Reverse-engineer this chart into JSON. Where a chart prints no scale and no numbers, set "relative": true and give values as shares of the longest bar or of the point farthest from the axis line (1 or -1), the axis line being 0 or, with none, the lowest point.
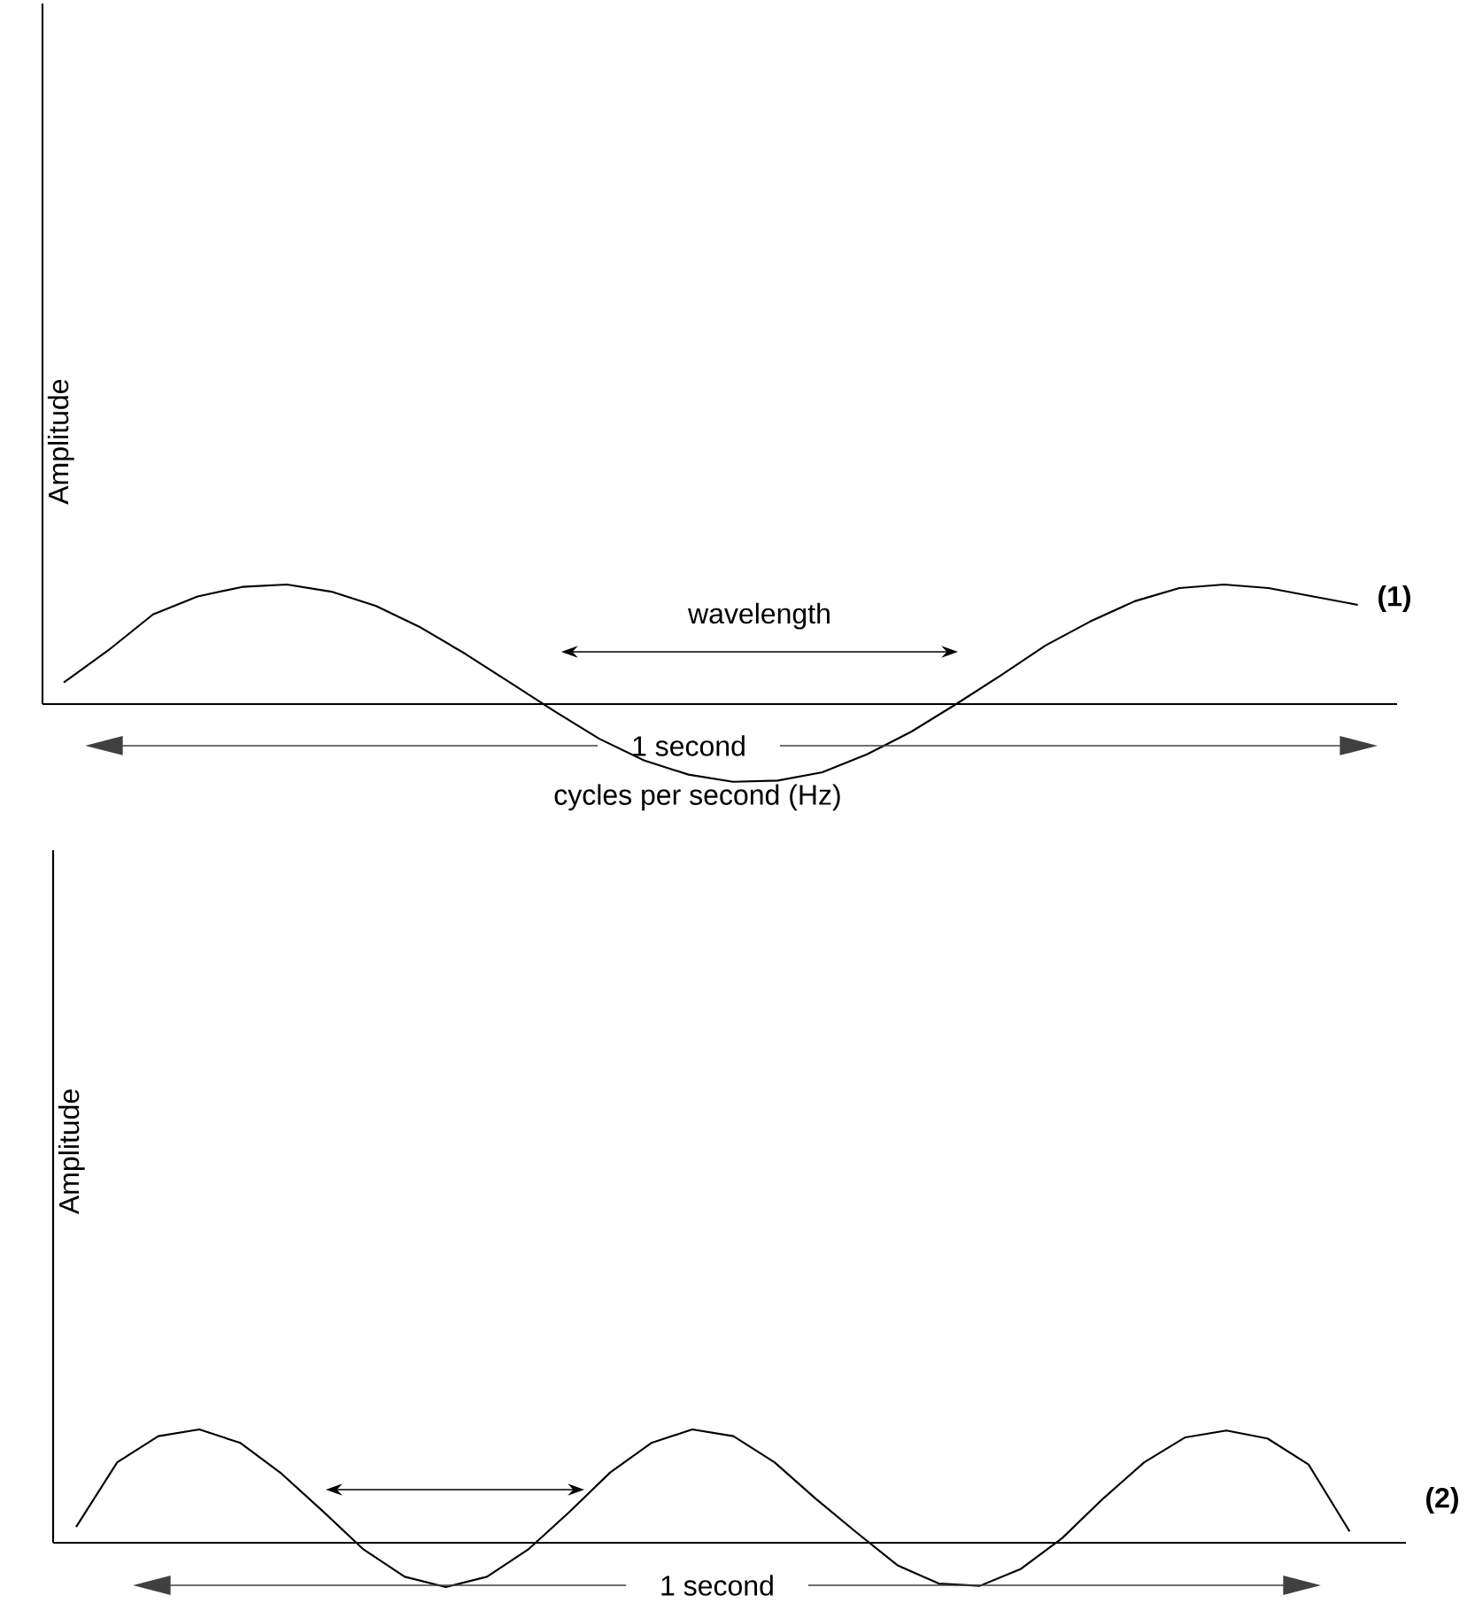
{
  "chart_data": [
    {
      "type": "line",
      "relative": true,
      "xlabel": "cycles per second (Hz)",
      "ylabel": "Amplitude",
      "categories": [
        null,
        null,
        null,
        null,
        null,
        null,
        null,
        null,
        null,
        null,
        null,
        null,
        null,
        null,
        null,
        null,
        null,
        null,
        null,
        null,
        null,
        null,
        null,
        null,
        null,
        null,
        null,
        null,
        null,
        null
      ],
      "series": [
        {
          "name": "(1)",
          "color": "#000000",
          "values": [
            0.18,
            0.45,
            0.75,
            0.9,
            0.98,
            1.0,
            0.94,
            0.82,
            0.64,
            0.42,
            0.18,
            -0.06,
            -0.29,
            -0.47,
            -0.59,
            -0.65,
            -0.64,
            -0.57,
            -0.42,
            -0.23,
            0.0,
            0.24,
            0.49,
            0.69,
            0.86,
            0.97,
            1.0,
            0.97,
            0.9,
            0.83
          ]
        }
      ],
      "annotations": [
        "wavelength",
        "1 second"
      ]
    },
    {
      "type": "line",
      "relative": true,
      "ylabel": "Amplitude",
      "categories": [
        null,
        null,
        null,
        null,
        null,
        null,
        null,
        null,
        null,
        null,
        null,
        null,
        null,
        null,
        null,
        null,
        null,
        null,
        null,
        null,
        null,
        null,
        null,
        null,
        null,
        null,
        null,
        null,
        null,
        null,
        null,
        null
      ],
      "series": [
        {
          "name": "(2)",
          "color": "#000000",
          "values": [
            0.14,
            0.71,
            0.94,
            1.0,
            0.88,
            0.61,
            0.28,
            -0.06,
            -0.3,
            -0.39,
            -0.3,
            -0.06,
            0.27,
            0.62,
            0.88,
            1.0,
            0.94,
            0.71,
            0.39,
            0.09,
            -0.2,
            -0.36,
            -0.38,
            -0.23,
            0.04,
            0.39,
            0.71,
            0.93,
            0.99,
            0.92,
            0.69,
            0.1
          ]
        }
      ],
      "annotations": [
        "1 second"
      ]
    }
  ]
}
